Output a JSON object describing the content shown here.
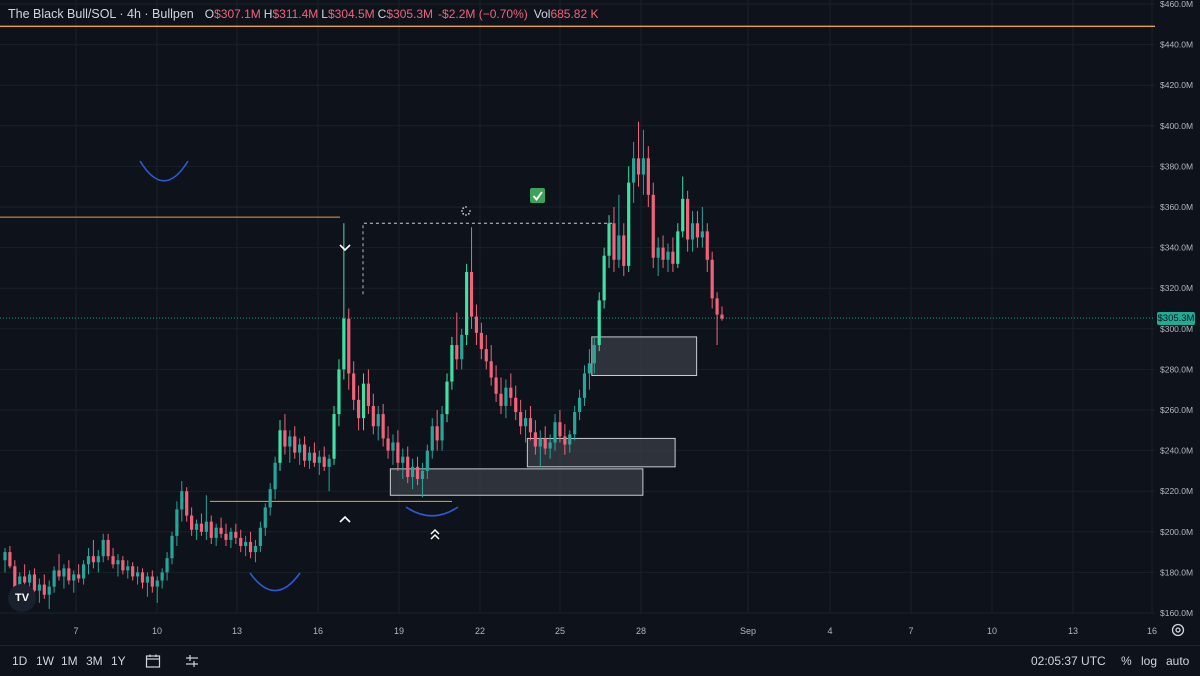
{
  "legend": {
    "symbol": "The Black Bull/SOL · 4h · Bullpen",
    "o_label": "O",
    "o_value": "$307.1M",
    "h_label": "H",
    "h_value": "$311.4M",
    "l_label": "L",
    "l_value": "$304.5M",
    "c_label": "C",
    "c_value": "$305.3M",
    "change": "-$2.2M (−0.70%)",
    "vol_label": "Vol",
    "vol_value": "685.82 K"
  },
  "price_tag": "$305.3M",
  "bottom_bar": {
    "ranges": [
      "1D",
      "1W",
      "1M",
      "3M",
      "1Y"
    ],
    "time": "02:05:37 UTC",
    "percent": "%",
    "log": "log",
    "auto": "auto"
  },
  "logo": "TV",
  "colors": {
    "background": "#0e131b",
    "up": "#26a69a",
    "up_bright": "#3fe0a4",
    "down": "#f0637a",
    "level_line": "#e8a33d",
    "curve": "#2a5bd7",
    "zone_fill": "#3a3f47",
    "zone_stroke": "#c9ccd1"
  },
  "chart_data": {
    "type": "candlestick",
    "x_ticks": [
      "7",
      "10",
      "13",
      "16",
      "19",
      "22",
      "25",
      "28",
      "Sep",
      "4",
      "7",
      "10",
      "13",
      "16"
    ],
    "y_ticks": [
      "$460.0M",
      "$440.0M",
      "$420.0M",
      "$400.0M",
      "$380.0M",
      "$360.0M",
      "$340.0M",
      "$320.0M",
      "$300.0M",
      "$280.0M",
      "$260.0M",
      "$240.0M",
      "$220.0M",
      "$200.0M",
      "$180.0M",
      "$160.0M"
    ],
    "ylim": [
      160,
      460
    ],
    "last_price": 305.3,
    "horizontal_levels": [
      449,
      355,
      215
    ],
    "zones": [
      {
        "x0": 18.7,
        "x1": 28.1,
        "y0": 218,
        "y1": 231
      },
      {
        "x0": 23.8,
        "x1": 29.3,
        "y0": 232,
        "y1": 246
      },
      {
        "x0": 26.2,
        "x1": 30.1,
        "y0": 277,
        "y1": 296
      }
    ],
    "markers": [
      {
        "type": "chevron-down",
        "x": 17.0,
        "y": 340
      },
      {
        "type": "chevron-up",
        "x": 17.0,
        "y": 206
      },
      {
        "type": "double-chevron-up",
        "x": 20.0,
        "y": 197
      },
      {
        "type": "check",
        "x": 24.8,
        "y": 367
      },
      {
        "type": "spinner",
        "x": 21.5,
        "y": 360
      }
    ],
    "candles": [
      {
        "o": 186,
        "h": 192,
        "l": 180,
        "c": 190
      },
      {
        "o": 190,
        "h": 193,
        "l": 182,
        "c": 183
      },
      {
        "o": 183,
        "h": 186,
        "l": 170,
        "c": 172
      },
      {
        "o": 172,
        "h": 180,
        "l": 168,
        "c": 178
      },
      {
        "o": 178,
        "h": 184,
        "l": 172,
        "c": 175
      },
      {
        "o": 175,
        "h": 181,
        "l": 171,
        "c": 179
      },
      {
        "o": 179,
        "h": 182,
        "l": 169,
        "c": 171
      },
      {
        "o": 171,
        "h": 177,
        "l": 165,
        "c": 174
      },
      {
        "o": 174,
        "h": 179,
        "l": 167,
        "c": 169
      },
      {
        "o": 169,
        "h": 176,
        "l": 162,
        "c": 173
      },
      {
        "o": 173,
        "h": 183,
        "l": 170,
        "c": 181
      },
      {
        "o": 181,
        "h": 189,
        "l": 176,
        "c": 178
      },
      {
        "o": 178,
        "h": 184,
        "l": 172,
        "c": 182
      },
      {
        "o": 182,
        "h": 186,
        "l": 174,
        "c": 176
      },
      {
        "o": 176,
        "h": 181,
        "l": 170,
        "c": 179
      },
      {
        "o": 179,
        "h": 184,
        "l": 175,
        "c": 177
      },
      {
        "o": 177,
        "h": 186,
        "l": 174,
        "c": 184
      },
      {
        "o": 184,
        "h": 192,
        "l": 179,
        "c": 188
      },
      {
        "o": 188,
        "h": 196,
        "l": 182,
        "c": 185
      },
      {
        "o": 185,
        "h": 191,
        "l": 180,
        "c": 188
      },
      {
        "o": 188,
        "h": 199,
        "l": 185,
        "c": 196
      },
      {
        "o": 196,
        "h": 199,
        "l": 186,
        "c": 188
      },
      {
        "o": 188,
        "h": 192,
        "l": 182,
        "c": 184
      },
      {
        "o": 184,
        "h": 189,
        "l": 178,
        "c": 186
      },
      {
        "o": 186,
        "h": 188,
        "l": 179,
        "c": 181
      },
      {
        "o": 181,
        "h": 186,
        "l": 177,
        "c": 183
      },
      {
        "o": 183,
        "h": 185,
        "l": 176,
        "c": 178
      },
      {
        "o": 178,
        "h": 183,
        "l": 174,
        "c": 180
      },
      {
        "o": 180,
        "h": 182,
        "l": 172,
        "c": 175
      },
      {
        "o": 175,
        "h": 180,
        "l": 168,
        "c": 178
      },
      {
        "o": 178,
        "h": 181,
        "l": 170,
        "c": 173
      },
      {
        "o": 173,
        "h": 178,
        "l": 165,
        "c": 176
      },
      {
        "o": 176,
        "h": 182,
        "l": 172,
        "c": 180
      },
      {
        "o": 180,
        "h": 190,
        "l": 176,
        "c": 187
      },
      {
        "o": 187,
        "h": 200,
        "l": 184,
        "c": 198
      },
      {
        "o": 198,
        "h": 215,
        "l": 193,
        "c": 211
      },
      {
        "o": 211,
        "h": 225,
        "l": 205,
        "c": 220
      },
      {
        "o": 220,
        "h": 222,
        "l": 205,
        "c": 208
      },
      {
        "o": 208,
        "h": 212,
        "l": 198,
        "c": 201
      },
      {
        "o": 201,
        "h": 206,
        "l": 196,
        "c": 204
      },
      {
        "o": 204,
        "h": 209,
        "l": 198,
        "c": 200
      },
      {
        "o": 200,
        "h": 218,
        "l": 196,
        "c": 205
      },
      {
        "o": 205,
        "h": 208,
        "l": 194,
        "c": 197
      },
      {
        "o": 197,
        "h": 204,
        "l": 193,
        "c": 202
      },
      {
        "o": 202,
        "h": 207,
        "l": 197,
        "c": 199
      },
      {
        "o": 199,
        "h": 204,
        "l": 193,
        "c": 196
      },
      {
        "o": 196,
        "h": 202,
        "l": 192,
        "c": 200
      },
      {
        "o": 200,
        "h": 204,
        "l": 194,
        "c": 197
      },
      {
        "o": 197,
        "h": 201,
        "l": 190,
        "c": 193
      },
      {
        "o": 193,
        "h": 198,
        "l": 188,
        "c": 195
      },
      {
        "o": 195,
        "h": 200,
        "l": 187,
        "c": 190
      },
      {
        "o": 190,
        "h": 196,
        "l": 185,
        "c": 193
      },
      {
        "o": 193,
        "h": 205,
        "l": 190,
        "c": 202
      },
      {
        "o": 202,
        "h": 214,
        "l": 198,
        "c": 212
      },
      {
        "o": 212,
        "h": 224,
        "l": 208,
        "c": 221
      },
      {
        "o": 221,
        "h": 237,
        "l": 216,
        "c": 234
      },
      {
        "o": 234,
        "h": 255,
        "l": 230,
        "c": 250
      },
      {
        "o": 250,
        "h": 258,
        "l": 238,
        "c": 242
      },
      {
        "o": 242,
        "h": 250,
        "l": 234,
        "c": 247
      },
      {
        "o": 247,
        "h": 252,
        "l": 236,
        "c": 239
      },
      {
        "o": 239,
        "h": 246,
        "l": 233,
        "c": 243
      },
      {
        "o": 243,
        "h": 247,
        "l": 232,
        "c": 235
      },
      {
        "o": 235,
        "h": 242,
        "l": 231,
        "c": 239
      },
      {
        "o": 239,
        "h": 244,
        "l": 232,
        "c": 234
      },
      {
        "o": 234,
        "h": 240,
        "l": 228,
        "c": 237
      },
      {
        "o": 237,
        "h": 242,
        "l": 230,
        "c": 232
      },
      {
        "o": 232,
        "h": 238,
        "l": 220,
        "c": 236
      },
      {
        "o": 236,
        "h": 262,
        "l": 233,
        "c": 258
      },
      {
        "o": 258,
        "h": 285,
        "l": 252,
        "c": 280
      },
      {
        "o": 280,
        "h": 352,
        "l": 275,
        "c": 305
      },
      {
        "o": 305,
        "h": 310,
        "l": 270,
        "c": 278
      },
      {
        "o": 278,
        "h": 284,
        "l": 260,
        "c": 265
      },
      {
        "o": 265,
        "h": 272,
        "l": 250,
        "c": 256
      },
      {
        "o": 256,
        "h": 278,
        "l": 250,
        "c": 273
      },
      {
        "o": 273,
        "h": 280,
        "l": 258,
        "c": 262
      },
      {
        "o": 262,
        "h": 268,
        "l": 248,
        "c": 252
      },
      {
        "o": 252,
        "h": 262,
        "l": 245,
        "c": 258
      },
      {
        "o": 258,
        "h": 263,
        "l": 242,
        "c": 246
      },
      {
        "o": 246,
        "h": 252,
        "l": 236,
        "c": 240
      },
      {
        "o": 240,
        "h": 248,
        "l": 233,
        "c": 244
      },
      {
        "o": 244,
        "h": 250,
        "l": 230,
        "c": 234
      },
      {
        "o": 234,
        "h": 241,
        "l": 226,
        "c": 237
      },
      {
        "o": 237,
        "h": 242,
        "l": 224,
        "c": 227
      },
      {
        "o": 227,
        "h": 236,
        "l": 221,
        "c": 232
      },
      {
        "o": 232,
        "h": 237,
        "l": 223,
        "c": 226
      },
      {
        "o": 226,
        "h": 234,
        "l": 217,
        "c": 230
      },
      {
        "o": 230,
        "h": 243,
        "l": 226,
        "c": 240
      },
      {
        "o": 240,
        "h": 256,
        "l": 236,
        "c": 252
      },
      {
        "o": 252,
        "h": 260,
        "l": 240,
        "c": 245
      },
      {
        "o": 245,
        "h": 262,
        "l": 240,
        "c": 258
      },
      {
        "o": 258,
        "h": 278,
        "l": 254,
        "c": 274
      },
      {
        "o": 274,
        "h": 296,
        "l": 270,
        "c": 292
      },
      {
        "o": 292,
        "h": 308,
        "l": 280,
        "c": 285
      },
      {
        "o": 285,
        "h": 300,
        "l": 280,
        "c": 297
      },
      {
        "o": 297,
        "h": 332,
        "l": 292,
        "c": 328
      },
      {
        "o": 328,
        "h": 350,
        "l": 300,
        "c": 306
      },
      {
        "o": 306,
        "h": 312,
        "l": 292,
        "c": 298
      },
      {
        "o": 298,
        "h": 303,
        "l": 285,
        "c": 290
      },
      {
        "o": 290,
        "h": 297,
        "l": 280,
        "c": 284
      },
      {
        "o": 284,
        "h": 292,
        "l": 272,
        "c": 276
      },
      {
        "o": 276,
        "h": 282,
        "l": 264,
        "c": 268
      },
      {
        "o": 268,
        "h": 276,
        "l": 258,
        "c": 262
      },
      {
        "o": 262,
        "h": 275,
        "l": 256,
        "c": 271
      },
      {
        "o": 271,
        "h": 278,
        "l": 262,
        "c": 266
      },
      {
        "o": 266,
        "h": 272,
        "l": 255,
        "c": 259
      },
      {
        "o": 259,
        "h": 265,
        "l": 248,
        "c": 252
      },
      {
        "o": 252,
        "h": 260,
        "l": 244,
        "c": 256
      },
      {
        "o": 256,
        "h": 262,
        "l": 245,
        "c": 249
      },
      {
        "o": 249,
        "h": 255,
        "l": 238,
        "c": 242
      },
      {
        "o": 242,
        "h": 250,
        "l": 232,
        "c": 246
      },
      {
        "o": 246,
        "h": 252,
        "l": 238,
        "c": 241
      },
      {
        "o": 241,
        "h": 248,
        "l": 236,
        "c": 244
      },
      {
        "o": 244,
        "h": 258,
        "l": 240,
        "c": 254
      },
      {
        "o": 254,
        "h": 260,
        "l": 244,
        "c": 247
      },
      {
        "o": 247,
        "h": 253,
        "l": 238,
        "c": 243
      },
      {
        "o": 243,
        "h": 250,
        "l": 239,
        "c": 248
      },
      {
        "o": 248,
        "h": 262,
        "l": 245,
        "c": 259
      },
      {
        "o": 259,
        "h": 270,
        "l": 255,
        "c": 266
      },
      {
        "o": 266,
        "h": 282,
        "l": 262,
        "c": 278
      },
      {
        "o": 278,
        "h": 290,
        "l": 270,
        "c": 283
      },
      {
        "o": 283,
        "h": 296,
        "l": 278,
        "c": 292
      },
      {
        "o": 292,
        "h": 318,
        "l": 289,
        "c": 314
      },
      {
        "o": 314,
        "h": 340,
        "l": 310,
        "c": 336
      },
      {
        "o": 336,
        "h": 356,
        "l": 330,
        "c": 352
      },
      {
        "o": 352,
        "h": 360,
        "l": 328,
        "c": 334
      },
      {
        "o": 334,
        "h": 366,
        "l": 330,
        "c": 346
      },
      {
        "o": 346,
        "h": 352,
        "l": 326,
        "c": 331
      },
      {
        "o": 331,
        "h": 380,
        "l": 328,
        "c": 372
      },
      {
        "o": 372,
        "h": 392,
        "l": 362,
        "c": 384
      },
      {
        "o": 384,
        "h": 402,
        "l": 370,
        "c": 376
      },
      {
        "o": 376,
        "h": 398,
        "l": 366,
        "c": 384
      },
      {
        "o": 384,
        "h": 390,
        "l": 360,
        "c": 366
      },
      {
        "o": 366,
        "h": 372,
        "l": 330,
        "c": 335
      },
      {
        "o": 335,
        "h": 345,
        "l": 326,
        "c": 340
      },
      {
        "o": 340,
        "h": 346,
        "l": 330,
        "c": 334
      },
      {
        "o": 334,
        "h": 342,
        "l": 328,
        "c": 338
      },
      {
        "o": 338,
        "h": 345,
        "l": 328,
        "c": 332
      },
      {
        "o": 332,
        "h": 352,
        "l": 330,
        "c": 348
      },
      {
        "o": 348,
        "h": 375,
        "l": 345,
        "c": 364
      },
      {
        "o": 364,
        "h": 368,
        "l": 338,
        "c": 344
      },
      {
        "o": 344,
        "h": 358,
        "l": 338,
        "c": 352
      },
      {
        "o": 352,
        "h": 358,
        "l": 340,
        "c": 345
      },
      {
        "o": 345,
        "h": 360,
        "l": 340,
        "c": 348
      },
      {
        "o": 348,
        "h": 352,
        "l": 328,
        "c": 334
      },
      {
        "o": 334,
        "h": 338,
        "l": 310,
        "c": 315
      },
      {
        "o": 315,
        "h": 318,
        "l": 292,
        "c": 307
      },
      {
        "o": 307,
        "h": 311,
        "l": 304,
        "c": 305
      }
    ]
  }
}
